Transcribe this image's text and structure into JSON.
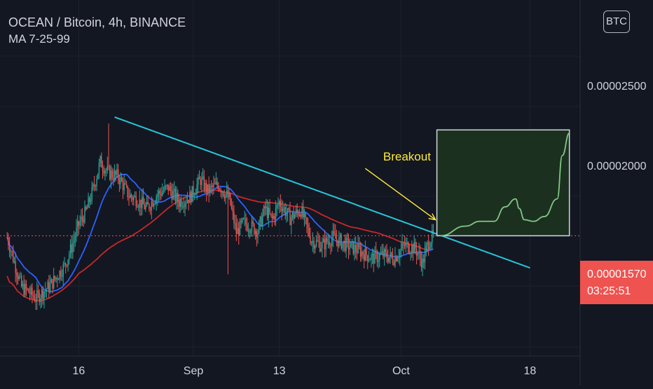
{
  "legend": {
    "symbol_line": "OCEAN / Bitcoin, 4h, BINANCE",
    "ma_line": "MA 7-25-99"
  },
  "currency_badge": "BTC",
  "price_label": {
    "value": "0.00001570",
    "countdown": "03:25:51",
    "color": "#ef5350"
  },
  "annotation": {
    "text": "Breakout",
    "color": "#ffeb3b"
  },
  "colors": {
    "background": "#131722",
    "grid": "#1e222d",
    "up_candle": "#26a69a",
    "down_candle": "#ef5350",
    "ma_fast": "#2962ff",
    "ma_slow": "#c62828",
    "trendline": "#26c6da",
    "projection_box": "#1e3320",
    "projection_line": "#81c784"
  },
  "chart_data": {
    "type": "candlestick",
    "title": "OCEAN / Bitcoin, 4h, BINANCE",
    "indicators": [
      "MA 7-25-99"
    ],
    "y_tick_labels": [
      "0.00002500",
      "0.00002000"
    ],
    "y_ticks": [
      2.5e-05,
      2e-05
    ],
    "x_tick_labels": [
      "16",
      "Sep",
      "13",
      "Oct",
      "18"
    ],
    "x_ticks_days": [
      16,
      32,
      44,
      61,
      79
    ],
    "x_range_days": [
      5,
      86
    ],
    "ylim": [
      8.2e-06,
      3.04e-05
    ],
    "current_price": 1.57e-05,
    "trend_segments": [
      [
        6,
        1.56e-05
      ],
      [
        8,
        1.25e-05
      ],
      [
        9,
        1.22e-05
      ],
      [
        10,
        1.18e-05
      ],
      [
        12,
        1.26e-05
      ],
      [
        14,
        1.38e-05
      ],
      [
        15,
        1.5e-05
      ],
      [
        16,
        1.64e-05
      ],
      [
        17,
        1.72e-05
      ],
      [
        18,
        1.86e-05
      ],
      [
        19,
        2.03e-05
      ],
      [
        20.2,
        1.96e-05
      ],
      [
        21.5,
        1.94e-05
      ],
      [
        23,
        1.82e-05
      ],
      [
        24,
        1.8e-05
      ],
      [
        25.5,
        1.74e-05
      ],
      [
        27,
        1.83e-05
      ],
      [
        28.5,
        1.87e-05
      ],
      [
        30,
        1.78e-05
      ],
      [
        31.5,
        1.81e-05
      ],
      [
        33,
        1.92e-05
      ],
      [
        34,
        1.85e-05
      ],
      [
        35.5,
        1.89e-05
      ],
      [
        37,
        1.8e-05
      ],
      [
        38,
        1.59e-05
      ],
      [
        39,
        1.65e-05
      ],
      [
        40,
        1.63e-05
      ],
      [
        41,
        1.6e-05
      ],
      [
        42,
        1.74e-05
      ],
      [
        43,
        1.67e-05
      ],
      [
        44,
        1.78e-05
      ],
      [
        45.5,
        1.68e-05
      ],
      [
        47,
        1.73e-05
      ],
      [
        48.5,
        1.54e-05
      ],
      [
        50,
        1.51e-05
      ],
      [
        51.5,
        1.56e-05
      ],
      [
        53,
        1.52e-05
      ],
      [
        55,
        1.48e-05
      ],
      [
        57,
        1.43e-05
      ],
      [
        58.5,
        1.45e-05
      ],
      [
        60,
        1.43e-05
      ],
      [
        61.5,
        1.51e-05
      ],
      [
        63,
        1.49e-05
      ],
      [
        64,
        1.4e-05
      ],
      [
        64.8,
        1.53e-05
      ],
      [
        65.5,
        1.57e-05
      ]
    ],
    "spikes": [
      {
        "day": 20.2,
        "high": 2.27e-05
      },
      {
        "day": 36.8,
        "low": 1.33e-05
      },
      {
        "day": 64.3,
        "low": 1.36e-05
      }
    ],
    "trendline": {
      "from": [
        21,
        2.31e-05
      ],
      "to": [
        79,
        1.37e-05
      ]
    },
    "horizontal_line": 1.57e-05,
    "projection_box": {
      "x": [
        66,
        84.5
      ],
      "y": [
        1.57e-05,
        2.23e-05
      ]
    },
    "projection_path": [
      [
        66.5,
        1.57e-05
      ],
      [
        70,
        1.63e-05
      ],
      [
        72,
        1.66e-05
      ],
      [
        74,
        1.66e-05
      ],
      [
        75.5,
        1.75e-05
      ],
      [
        77,
        1.8e-05
      ],
      [
        77.5,
        1.74e-05
      ],
      [
        78.2,
        1.67e-05
      ],
      [
        79.5,
        1.66e-05
      ],
      [
        81,
        1.69e-05
      ],
      [
        82.8,
        1.8e-05
      ],
      [
        83.5,
        2.07e-05
      ],
      [
        84.5,
        2.21e-05
      ]
    ],
    "annotation_arrow": {
      "from": [
        56,
        1.99e-05
      ],
      "to": [
        65.8,
        1.67e-05
      ]
    },
    "annotation_text_pos": [
      58.5,
      2.04e-05
    ]
  }
}
